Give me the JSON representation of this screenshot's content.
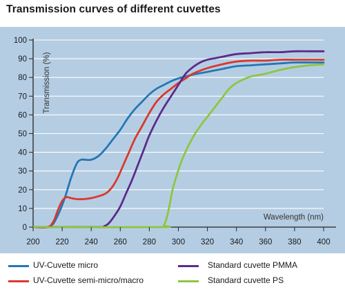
{
  "title": "Transmission curves of different cuvettes",
  "chart_data": {
    "type": "line",
    "title": "Transmission curves of different cuvettes",
    "xlabel": "Wavelength (nm)",
    "ylabel": "Transmission (%)",
    "xlim": [
      200,
      400
    ],
    "ylim": [
      0,
      100
    ],
    "x_ticks": [
      "200",
      "220",
      "240",
      "260",
      "280",
      "300",
      "320",
      "340",
      "360",
      "380",
      "400"
    ],
    "y_ticks": [
      "0",
      "10",
      "20",
      "30",
      "40",
      "50",
      "60",
      "70",
      "80",
      "90",
      "100"
    ],
    "grid": "horizontal",
    "legend_position": "bottom",
    "series": [
      {
        "name": "UV-Cuvette micro",
        "color": "#2277b5",
        "points": [
          [
            200,
            0
          ],
          [
            210,
            0
          ],
          [
            214,
            2
          ],
          [
            218,
            8
          ],
          [
            222,
            16
          ],
          [
            226,
            26
          ],
          [
            230,
            34
          ],
          [
            233,
            36
          ],
          [
            236,
            36
          ],
          [
            240,
            36
          ],
          [
            245,
            38
          ],
          [
            250,
            42
          ],
          [
            255,
            47
          ],
          [
            260,
            52
          ],
          [
            265,
            58
          ],
          [
            270,
            63
          ],
          [
            275,
            67
          ],
          [
            280,
            71
          ],
          [
            285,
            74
          ],
          [
            290,
            76
          ],
          [
            295,
            78
          ],
          [
            300,
            79.5
          ],
          [
            305,
            80.5
          ],
          [
            310,
            81.5
          ],
          [
            320,
            83
          ],
          [
            330,
            84.5
          ],
          [
            340,
            86
          ],
          [
            350,
            86.5
          ],
          [
            360,
            87
          ],
          [
            370,
            87.5
          ],
          [
            380,
            88
          ],
          [
            390,
            88
          ],
          [
            400,
            88
          ]
        ]
      },
      {
        "name": "UV-Cuvette semi-micro/macro",
        "color": "#d9382d",
        "points": [
          [
            200,
            0
          ],
          [
            210,
            0
          ],
          [
            214,
            3
          ],
          [
            217,
            9
          ],
          [
            220,
            14
          ],
          [
            223,
            16
          ],
          [
            226,
            15.5
          ],
          [
            230,
            15
          ],
          [
            235,
            15
          ],
          [
            240,
            15.5
          ],
          [
            245,
            16.5
          ],
          [
            250,
            18
          ],
          [
            254,
            21
          ],
          [
            258,
            26
          ],
          [
            262,
            33
          ],
          [
            266,
            40
          ],
          [
            270,
            47
          ],
          [
            275,
            54
          ],
          [
            280,
            61
          ],
          [
            285,
            67
          ],
          [
            290,
            71
          ],
          [
            295,
            74
          ],
          [
            300,
            77
          ],
          [
            305,
            79.5
          ],
          [
            310,
            82
          ],
          [
            320,
            85
          ],
          [
            330,
            87
          ],
          [
            340,
            88.5
          ],
          [
            350,
            89
          ],
          [
            360,
            89
          ],
          [
            370,
            89.5
          ],
          [
            380,
            89.5
          ],
          [
            390,
            89.5
          ],
          [
            400,
            89.5
          ]
        ]
      },
      {
        "name": "Standard cuvette PMMA",
        "color": "#5c2a8a",
        "points": [
          [
            200,
            0
          ],
          [
            245,
            0
          ],
          [
            249,
            0.5
          ],
          [
            252,
            2
          ],
          [
            256,
            6
          ],
          [
            260,
            11
          ],
          [
            264,
            18
          ],
          [
            268,
            25
          ],
          [
            272,
            33
          ],
          [
            276,
            41
          ],
          [
            280,
            49
          ],
          [
            285,
            57
          ],
          [
            290,
            64
          ],
          [
            295,
            70
          ],
          [
            300,
            76
          ],
          [
            305,
            82
          ],
          [
            310,
            85.5
          ],
          [
            315,
            88
          ],
          [
            320,
            89.5
          ],
          [
            330,
            91
          ],
          [
            340,
            92.5
          ],
          [
            350,
            93
          ],
          [
            360,
            93.5
          ],
          [
            370,
            93.5
          ],
          [
            380,
            94
          ],
          [
            390,
            94
          ],
          [
            400,
            94
          ]
        ]
      },
      {
        "name": "Standard cuvette PS",
        "color": "#8dc63f",
        "points": [
          [
            200,
            0
          ],
          [
            287,
            0
          ],
          [
            290,
            1
          ],
          [
            292,
            5
          ],
          [
            294,
            12
          ],
          [
            296,
            20
          ],
          [
            299,
            28
          ],
          [
            302,
            35
          ],
          [
            306,
            42
          ],
          [
            310,
            48
          ],
          [
            315,
            54
          ],
          [
            320,
            59
          ],
          [
            325,
            64
          ],
          [
            330,
            69
          ],
          [
            335,
            74
          ],
          [
            340,
            77
          ],
          [
            345,
            79
          ],
          [
            350,
            80.5
          ],
          [
            360,
            82
          ],
          [
            370,
            84
          ],
          [
            380,
            85.5
          ],
          [
            390,
            86.5
          ],
          [
            400,
            87
          ]
        ]
      }
    ]
  }
}
